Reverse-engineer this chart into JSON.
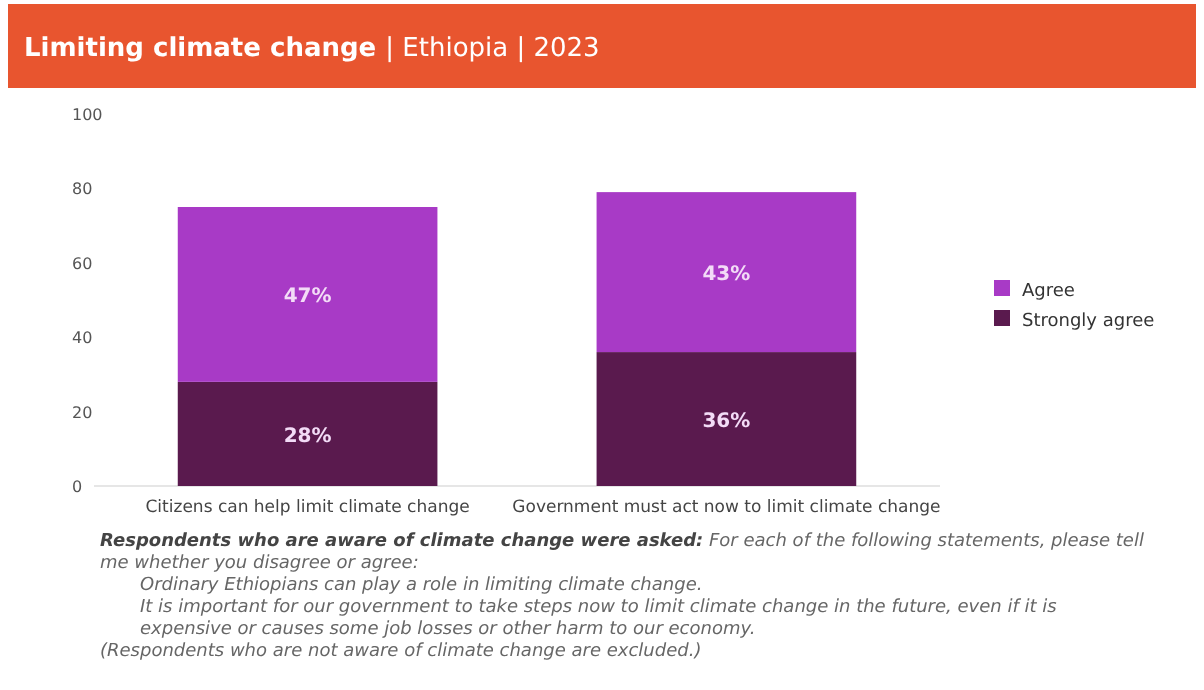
{
  "chart_data": {
    "type": "bar",
    "title": "Limiting climate change | Ethiopia | 2023",
    "stacked": true,
    "categories": [
      "Citizens can help limit climate change",
      "Government must act now to limit climate change"
    ],
    "series": [
      {
        "name": "Strongly agree",
        "color": "#5a1a4e",
        "values": [
          28,
          36
        ],
        "value_labels": [
          "28%",
          "36%"
        ]
      },
      {
        "name": "Agree",
        "color": "#a83ac6",
        "values": [
          47,
          43
        ],
        "value_labels": [
          "47%",
          "43%"
        ]
      }
    ],
    "ylim": [
      0,
      100
    ],
    "yticks": [
      0,
      20,
      40,
      60,
      80,
      100
    ],
    "grid": false,
    "legend": "right",
    "annotations": [
      "Respondents who are aware of climate change were asked:",
      "For each of the following statements, please tell me whether you disagree or agree:",
      "Ordinary Ethiopians can play a role in limiting climate change.",
      "It is important for our government to take steps now to limit climate change in the future, even if it is expensive or causes some job losses or other harm to our economy.",
      "(Respondents who are not aware of climate change are excluded.)"
    ]
  }
}
